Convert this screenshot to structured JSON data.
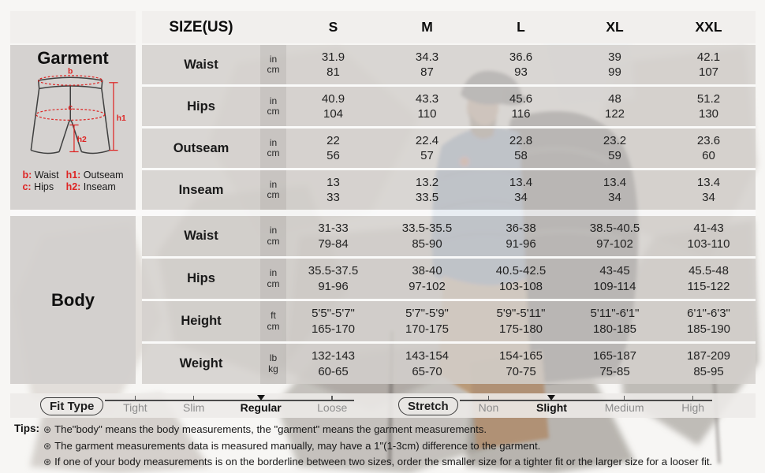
{
  "chart_data": {
    "type": "table",
    "size_header": "SIZE(US)",
    "sizes": [
      "S",
      "M",
      "L",
      "XL",
      "XXL"
    ],
    "tables": [
      {
        "section": "Garment",
        "rows": [
          {
            "label": "Waist",
            "units": [
              "in",
              "cm"
            ],
            "cells": [
              [
                "31.9",
                "81"
              ],
              [
                "34.3",
                "87"
              ],
              [
                "36.6",
                "93"
              ],
              [
                "39",
                "99"
              ],
              [
                "42.1",
                "107"
              ]
            ]
          },
          {
            "label": "Hips",
            "units": [
              "in",
              "cm"
            ],
            "cells": [
              [
                "40.9",
                "104"
              ],
              [
                "43.3",
                "110"
              ],
              [
                "45.6",
                "116"
              ],
              [
                "48",
                "122"
              ],
              [
                "51.2",
                "130"
              ]
            ]
          },
          {
            "label": "Outseam",
            "units": [
              "in",
              "cm"
            ],
            "cells": [
              [
                "22",
                "56"
              ],
              [
                "22.4",
                "57"
              ],
              [
                "22.8",
                "58"
              ],
              [
                "23.2",
                "59"
              ],
              [
                "23.6",
                "60"
              ]
            ]
          },
          {
            "label": "Inseam",
            "units": [
              "in",
              "cm"
            ],
            "cells": [
              [
                "13",
                "33"
              ],
              [
                "13.2",
                "33.5"
              ],
              [
                "13.4",
                "34"
              ],
              [
                "13.4",
                "34"
              ],
              [
                "13.4",
                "34"
              ]
            ]
          }
        ]
      },
      {
        "section": "Body",
        "rows": [
          {
            "label": "Waist",
            "units": [
              "in",
              "cm"
            ],
            "cells": [
              [
                "31-33",
                "79-84"
              ],
              [
                "33.5-35.5",
                "85-90"
              ],
              [
                "36-38",
                "91-96"
              ],
              [
                "38.5-40.5",
                "97-102"
              ],
              [
                "41-43",
                "103-110"
              ]
            ]
          },
          {
            "label": "Hips",
            "units": [
              "in",
              "cm"
            ],
            "cells": [
              [
                "35.5-37.5",
                "91-96"
              ],
              [
                "38-40",
                "97-102"
              ],
              [
                "40.5-42.5",
                "103-108"
              ],
              [
                "43-45",
                "109-114"
              ],
              [
                "45.5-48",
                "115-122"
              ]
            ]
          },
          {
            "label": "Height",
            "units": [
              "ft",
              "cm"
            ],
            "cells": [
              [
                "5'5\"-5'7\"",
                "165-170"
              ],
              [
                "5'7\"-5'9\"",
                "170-175"
              ],
              [
                "5'9\"-5'11\"",
                "175-180"
              ],
              [
                "5'11\"-6'1\"",
                "180-185"
              ],
              [
                "6'1\"-6'3\"",
                "185-190"
              ]
            ]
          },
          {
            "label": "Weight",
            "units": [
              "lb",
              "kg"
            ],
            "cells": [
              [
                "132-143",
                "60-65"
              ],
              [
                "143-154",
                "65-70"
              ],
              [
                "154-165",
                "70-75"
              ],
              [
                "165-187",
                "75-85"
              ],
              [
                "187-209",
                "85-95"
              ]
            ]
          }
        ]
      }
    ]
  },
  "diagram": {
    "title": "Garment",
    "marks": {
      "b": "b",
      "c": "c",
      "h1": "h1",
      "h2": "h2"
    },
    "legend": [
      {
        "key": "b:",
        "label": "Waist"
      },
      {
        "key": "c:",
        "label": "Hips"
      },
      {
        "key": "h1:",
        "label": "Outseam"
      },
      {
        "key": "h2:",
        "label": "Inseam"
      }
    ]
  },
  "body_panel": {
    "title": "Body"
  },
  "fit_scales": [
    {
      "label": "Fit Type",
      "options": [
        {
          "text": "Tight",
          "selected": false
        },
        {
          "text": "Slim",
          "selected": false
        },
        {
          "text": "Regular",
          "selected": true
        },
        {
          "text": "Loose",
          "selected": false
        }
      ]
    },
    {
      "label": "Stretch",
      "options": [
        {
          "text": "Non",
          "selected": false
        },
        {
          "text": "Slight",
          "selected": true
        },
        {
          "text": "Medium",
          "selected": false
        },
        {
          "text": "High",
          "selected": false
        }
      ]
    }
  ],
  "tips": {
    "label": "Tips:",
    "bullet": "⊛",
    "items": [
      "The\"body\" means the body measurements, the \"garment\" means the garment measurements.",
      "The garment measurements data is measured manually, may have a 1\"(1-3cm) difference to the garment.",
      "If one of your body measurements is on the borderline between two sizes, order the smaller size for a tighter fit or the larger size for a looser fit."
    ]
  },
  "colors": {
    "accent_red": "#de2423",
    "row_gray": "#d3d0ce",
    "header_gray": "#efedeb",
    "text_dark": "#1f1f1f",
    "muted_label": "#8d8d8d"
  }
}
